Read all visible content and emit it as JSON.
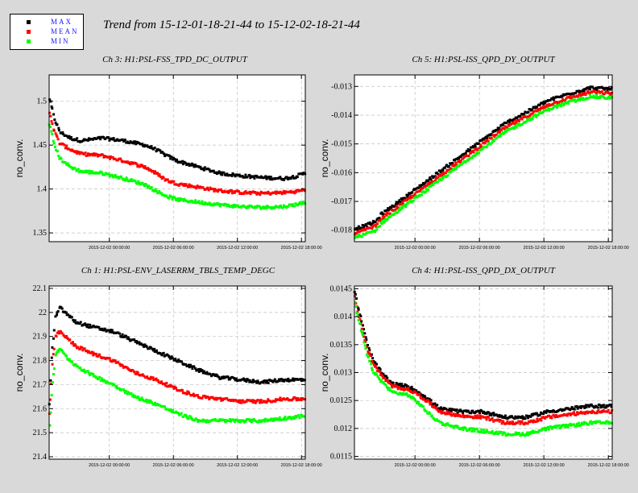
{
  "title": "Trend from 15-12-01-18-21-44 to 15-12-02-18-21-44",
  "legend": [
    {
      "label": "MAX",
      "color": "#000000"
    },
    {
      "label": "MEAN",
      "color": "#ff0000"
    },
    {
      "label": "MIN",
      "color": "#00ff00"
    }
  ],
  "colors": {
    "background": "#d9d9d9",
    "plot_bg": "#ffffff",
    "grid": "#c0c0c0",
    "max": "#000000",
    "mean": "#ff0000",
    "min": "#00ff00"
  },
  "chart_data": [
    {
      "type": "scatter",
      "title": "Ch 3: H1:PSL-FSS_TPD_DC_OUTPUT",
      "ylabel": "no_conv.",
      "xlabel": "",
      "xlim": [
        0,
        24
      ],
      "ylim": [
        1.34,
        1.53
      ],
      "yticks": [
        1.35,
        1.4,
        1.45,
        1.5
      ],
      "ytick_labels": [
        "1.35",
        "1.4",
        "1.45",
        "1.5"
      ],
      "xticks": [
        5.638,
        11.638,
        17.638,
        23.638
      ],
      "xtick_labels": [
        "2015-12-02 00:00:00",
        "2015-12-02 06:00:00",
        "2015-12-02 12:00:00",
        "2015-12-02 18:00:00"
      ],
      "grid": true,
      "series": [
        {
          "name": "MAX",
          "x": [
            0,
            0.5,
            1,
            2,
            3,
            5,
            7,
            9,
            10,
            11,
            12,
            14,
            16,
            18,
            20,
            22,
            23,
            24
          ],
          "y": [
            1.505,
            1.48,
            1.465,
            1.458,
            1.455,
            1.458,
            1.455,
            1.45,
            1.445,
            1.438,
            1.432,
            1.425,
            1.418,
            1.415,
            1.413,
            1.412,
            1.414,
            1.418
          ]
        },
        {
          "name": "MEAN",
          "x": [
            0,
            0.5,
            1,
            2,
            3,
            5,
            7,
            9,
            10,
            11,
            12,
            14,
            16,
            18,
            20,
            22,
            23,
            24
          ],
          "y": [
            1.49,
            1.465,
            1.452,
            1.445,
            1.44,
            1.438,
            1.432,
            1.425,
            1.418,
            1.41,
            1.406,
            1.402,
            1.398,
            1.396,
            1.395,
            1.396,
            1.397,
            1.399
          ]
        },
        {
          "name": "MIN",
          "x": [
            0,
            0.5,
            1,
            2,
            3,
            5,
            7,
            9,
            10,
            11,
            12,
            14,
            16,
            18,
            20,
            22,
            23,
            24
          ],
          "y": [
            1.475,
            1.45,
            1.435,
            1.425,
            1.42,
            1.418,
            1.412,
            1.405,
            1.398,
            1.392,
            1.388,
            1.385,
            1.382,
            1.38,
            1.379,
            1.38,
            1.382,
            1.385
          ]
        }
      ]
    },
    {
      "type": "scatter",
      "title": "Ch 5: H1:PSL-ISS_QPD_DY_OUTPUT",
      "ylabel": "no_conv.",
      "xlabel": "",
      "xlim": [
        0,
        24
      ],
      "ylim": [
        -0.0184,
        -0.0126
      ],
      "yticks": [
        -0.018,
        -0.017,
        -0.016,
        -0.015,
        -0.014,
        -0.013
      ],
      "ytick_labels": [
        "-0.018",
        "-0.017",
        "-0.016",
        "-0.015",
        "-0.014",
        "-0.013"
      ],
      "xticks": [
        5.638,
        11.638,
        17.638,
        23.638
      ],
      "xtick_labels": [
        "2015-12-02 00:00:00",
        "2015-12-02 06:00:00",
        "2015-12-02 12:00:00",
        "2015-12-02 18:00:00"
      ],
      "grid": true,
      "series": [
        {
          "name": "MAX",
          "x": [
            0,
            1,
            2,
            2.5,
            4,
            6,
            8,
            10,
            12,
            14,
            16,
            18,
            20,
            22,
            24
          ],
          "y": [
            -0.01795,
            -0.01785,
            -0.0177,
            -0.01745,
            -0.01705,
            -0.0165,
            -0.01595,
            -0.0154,
            -0.01485,
            -0.0143,
            -0.0139,
            -0.0135,
            -0.01325,
            -0.01305,
            -0.0131
          ]
        },
        {
          "name": "MEAN",
          "x": [
            0,
            1,
            2,
            2.5,
            4,
            6,
            8,
            10,
            12,
            14,
            16,
            18,
            20,
            22,
            24
          ],
          "y": [
            -0.0181,
            -0.018,
            -0.01785,
            -0.0176,
            -0.0172,
            -0.01665,
            -0.0161,
            -0.01555,
            -0.015,
            -0.01445,
            -0.01405,
            -0.01365,
            -0.0134,
            -0.0132,
            -0.01325
          ]
        },
        {
          "name": "MIN",
          "x": [
            0,
            1,
            2,
            2.5,
            4,
            6,
            8,
            10,
            12,
            14,
            16,
            18,
            20,
            22,
            24
          ],
          "y": [
            -0.01825,
            -0.01815,
            -0.018,
            -0.01775,
            -0.01735,
            -0.0168,
            -0.01625,
            -0.0157,
            -0.01515,
            -0.0146,
            -0.0142,
            -0.0138,
            -0.01355,
            -0.01335,
            -0.0134
          ]
        }
      ]
    },
    {
      "type": "scatter",
      "title": "Ch 1: H1:PSL-ENV_LASERRM_TBLS_TEMP_DEGC",
      "ylabel": "no_conv.",
      "xlabel": "",
      "xlim": [
        0,
        24
      ],
      "ylim": [
        21.39,
        22.11
      ],
      "yticks": [
        21.4,
        21.5,
        21.6,
        21.7,
        21.8,
        21.9,
        22.0,
        22.1
      ],
      "ytick_labels": [
        "21.4",
        "21.5",
        "21.6",
        "21.7",
        "21.8",
        "21.9",
        "22",
        "22.1"
      ],
      "xticks": [
        5.638,
        11.638,
        17.638,
        23.638
      ],
      "xtick_labels": [
        "2015-12-02 00:00:00",
        "2015-12-02 06:00:00",
        "2015-12-02 12:00:00",
        "2015-12-02 18:00:00"
      ],
      "grid": true,
      "series": [
        {
          "name": "MAX",
          "x": [
            0,
            0.3,
            0.6,
            1,
            1.5,
            2.5,
            4,
            6,
            8,
            10,
            12,
            14,
            16,
            18,
            20,
            22,
            24
          ],
          "y": [
            21.6,
            21.85,
            21.98,
            22.02,
            22.0,
            21.96,
            21.94,
            21.92,
            21.88,
            21.84,
            21.8,
            21.76,
            21.73,
            21.72,
            21.71,
            21.72,
            21.72
          ]
        },
        {
          "name": "MEAN",
          "x": [
            0,
            0.3,
            0.6,
            1,
            1.5,
            2.5,
            4,
            6,
            8,
            10,
            12,
            14,
            16,
            18,
            20,
            22,
            24
          ],
          "y": [
            21.55,
            21.78,
            21.9,
            21.92,
            21.9,
            21.86,
            21.83,
            21.8,
            21.75,
            21.72,
            21.68,
            21.65,
            21.64,
            21.63,
            21.63,
            21.64,
            21.64
          ]
        },
        {
          "name": "MIN",
          "x": [
            0,
            0.3,
            0.6,
            1,
            1.5,
            2.5,
            4,
            6,
            8,
            10,
            12,
            14,
            16,
            18,
            20,
            22,
            24
          ],
          "y": [
            21.48,
            21.7,
            21.82,
            21.85,
            21.82,
            21.78,
            21.74,
            21.7,
            21.65,
            21.62,
            21.58,
            21.55,
            21.55,
            21.55,
            21.55,
            21.56,
            21.57
          ]
        }
      ]
    },
    {
      "type": "scatter",
      "title": "Ch 4: H1:PSL-ISS_QPD_DX_OUTPUT",
      "ylabel": "no_conv.",
      "xlabel": "",
      "xlim": [
        0,
        24
      ],
      "ylim": [
        0.01145,
        0.01455
      ],
      "yticks": [
        0.0115,
        0.012,
        0.0125,
        0.013,
        0.0135,
        0.014,
        0.0145
      ],
      "ytick_labels": [
        "0.0115",
        "0.012",
        "0.0125",
        "0.013",
        "0.0135",
        "0.014",
        "0.0145"
      ],
      "xticks": [
        5.638,
        11.638,
        17.638,
        23.638
      ],
      "xtick_labels": [
        "2015-12-02 00:00:00",
        "2015-12-02 06:00:00",
        "2015-12-02 12:00:00",
        "2015-12-02 18:00:00"
      ],
      "grid": true,
      "series": [
        {
          "name": "MAX",
          "x": [
            0,
            0.3,
            0.7,
            1.2,
            1.8,
            2.5,
            3.5,
            5,
            6,
            7,
            8,
            10,
            12,
            14,
            16,
            18,
            20,
            22,
            24
          ],
          "y": [
            0.01448,
            0.0142,
            0.0139,
            0.0135,
            0.0132,
            0.013,
            0.0128,
            0.01275,
            0.01265,
            0.0125,
            0.01235,
            0.0123,
            0.0123,
            0.0122,
            0.0122,
            0.0123,
            0.01235,
            0.0124,
            0.0124
          ]
        },
        {
          "name": "MEAN",
          "x": [
            0,
            0.3,
            0.7,
            1.2,
            1.8,
            2.5,
            3.5,
            5,
            6,
            7,
            8,
            10,
            12,
            14,
            16,
            18,
            20,
            22,
            24
          ],
          "y": [
            0.0144,
            0.0141,
            0.0138,
            0.0134,
            0.01315,
            0.01295,
            0.01275,
            0.0127,
            0.0126,
            0.01245,
            0.0123,
            0.01222,
            0.0122,
            0.0121,
            0.0121,
            0.0122,
            0.01225,
            0.0123,
            0.0123
          ]
        },
        {
          "name": "MIN",
          "x": [
            0,
            0.3,
            0.7,
            1.2,
            1.8,
            2.5,
            3.5,
            5,
            6,
            7,
            8,
            10,
            12,
            14,
            16,
            18,
            20,
            22,
            24
          ],
          "y": [
            0.0143,
            0.014,
            0.0137,
            0.0133,
            0.013,
            0.01285,
            0.01265,
            0.0126,
            0.01245,
            0.01225,
            0.0121,
            0.012,
            0.01195,
            0.0119,
            0.0119,
            0.012,
            0.01205,
            0.0121,
            0.0121
          ]
        }
      ]
    }
  ]
}
